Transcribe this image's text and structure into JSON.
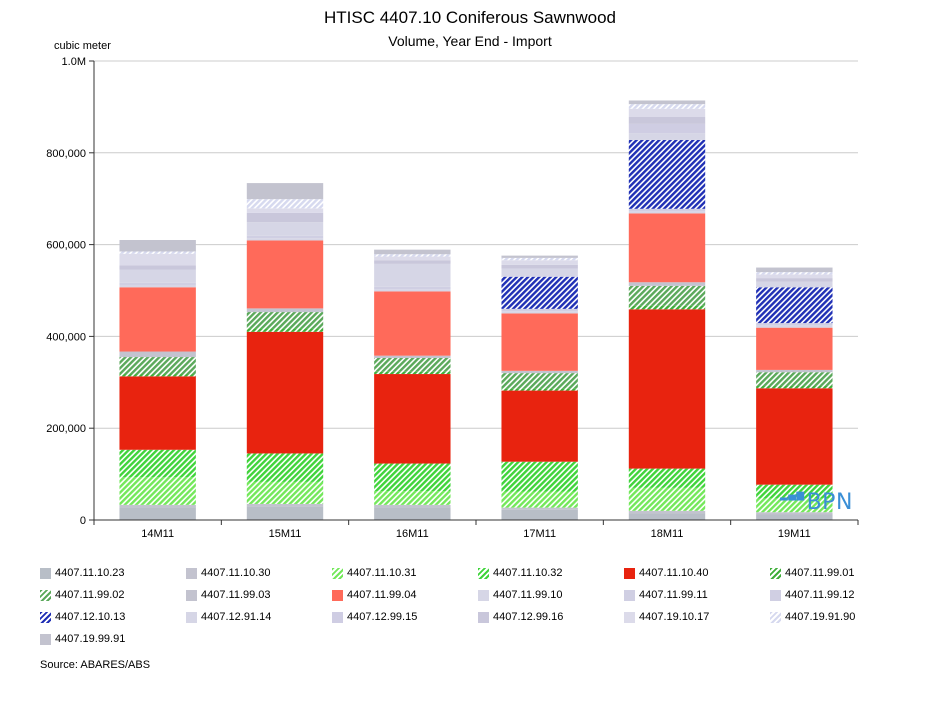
{
  "colors": {
    "gray": "#b8bec7",
    "lavender": "#c9c7db",
    "lavender2": "#cfcde3",
    "lightgreen": "#73e85a",
    "green": "#3fd43a",
    "red": "#e8230f",
    "salmon": "#ff6a5a",
    "navy": "#1f2fb5",
    "paleblue": "#d6d9ef",
    "grid": "#cccccc"
  },
  "chart_data": {
    "type": "bar",
    "stacked": true,
    "title": "HTISC 4407.10 Coniferous Sawnwood",
    "subtitle": "Volume, Year End - Import",
    "ylabel": "cubic meter",
    "xlabel": "",
    "ylim": [
      0,
      1000000
    ],
    "yticks": [
      {
        "value": 0,
        "label": "0"
      },
      {
        "value": 200000,
        "label": "200,000"
      },
      {
        "value": 400000,
        "label": "400,000"
      },
      {
        "value": 600000,
        "label": "600,000"
      },
      {
        "value": 800000,
        "label": "800,000"
      },
      {
        "value": 1000000,
        "label": "1.0M"
      }
    ],
    "grid": true,
    "legend_position": "bottom",
    "categories": [
      "14M11",
      "15M11",
      "16M11",
      "17M11",
      "18M11",
      "19M11"
    ],
    "series": [
      {
        "name": "4407.11.10.23",
        "color": "#b8bec7",
        "pattern": "solid",
        "values": [
          28000,
          30000,
          28000,
          22000,
          15000,
          12000
        ]
      },
      {
        "name": "4407.11.10.30",
        "color": "#c3c3cf",
        "pattern": "solid",
        "values": [
          5000,
          5000,
          5000,
          5000,
          5000,
          5000
        ]
      },
      {
        "name": "4407.11.10.31",
        "color": "#73e85a",
        "pattern": "hatch",
        "values": [
          60000,
          48000,
          30000,
          35000,
          50000,
          30000
        ]
      },
      {
        "name": "4407.11.10.32",
        "color": "#3fd43a",
        "pattern": "hatch",
        "values": [
          60000,
          62000,
          60000,
          65000,
          42000,
          30000
        ]
      },
      {
        "name": "4407.11.10.40",
        "color": "#e8230f",
        "pattern": "solid",
        "values": [
          160000,
          265000,
          195000,
          155000,
          347000,
          210000
        ]
      },
      {
        "name": "4407.11.99.01",
        "color": "#3fae3a",
        "pattern": "hatch",
        "values": [
          5000,
          8000,
          5000,
          5000,
          8000,
          5000
        ]
      },
      {
        "name": "4407.11.99.02",
        "color": "#5aa85a",
        "pattern": "hatch",
        "values": [
          37000,
          35000,
          30000,
          33000,
          43000,
          30000
        ]
      },
      {
        "name": "4407.11.99.03",
        "color": "#c3c3cf",
        "pattern": "solid",
        "values": [
          12000,
          8000,
          5000,
          5000,
          8000,
          5000
        ]
      },
      {
        "name": "4407.11.99.04",
        "color": "#ff6a5a",
        "pattern": "solid",
        "values": [
          140000,
          148000,
          140000,
          125000,
          150000,
          92000
        ]
      },
      {
        "name": "4407.11.99.10",
        "color": "#d6d6e6",
        "pattern": "solid",
        "values": [
          5000,
          5000,
          5000,
          5000,
          5000,
          5000
        ]
      },
      {
        "name": "4407.11.99.11",
        "color": "#d0cfe3",
        "pattern": "solid",
        "values": [
          0,
          0,
          0,
          0,
          0,
          0
        ]
      },
      {
        "name": "4407.11.99.12",
        "color": "#d0cfe3",
        "pattern": "solid",
        "values": [
          5000,
          5000,
          5000,
          5000,
          5000,
          5000
        ]
      },
      {
        "name": "4407.12.10.13",
        "color": "#1f2fb5",
        "pattern": "hatch",
        "values": [
          0,
          0,
          0,
          70000,
          150000,
          78000
        ]
      },
      {
        "name": "4407.12.91.14",
        "color": "#d6d6e6",
        "pattern": "solid",
        "values": [
          28000,
          30000,
          50000,
          18000,
          15000,
          12000
        ]
      },
      {
        "name": "4407.12.99.15",
        "color": "#cfcde3",
        "pattern": "solid",
        "values": [
          0,
          0,
          0,
          0,
          20000,
          0
        ]
      },
      {
        "name": "4407.12.99.16",
        "color": "#c9c7db",
        "pattern": "solid",
        "values": [
          10000,
          20000,
          8000,
          8000,
          15000,
          8000
        ]
      },
      {
        "name": "4407.19.10.17",
        "color": "#dcdbea",
        "pattern": "solid",
        "values": [
          25000,
          10000,
          8000,
          10000,
          18000,
          8000
        ]
      },
      {
        "name": "4407.19.91.90",
        "color": "#d6d9ef",
        "pattern": "hatch",
        "values": [
          5000,
          20000,
          5000,
          5000,
          10000,
          5000
        ]
      },
      {
        "name": "4407.19.99.91",
        "color": "#c3c3cf",
        "pattern": "solid",
        "values": [
          25000,
          35000,
          10000,
          5000,
          8000,
          10000
        ]
      }
    ],
    "source": "Source: ABARES/ABS",
    "watermark": "BPN"
  }
}
